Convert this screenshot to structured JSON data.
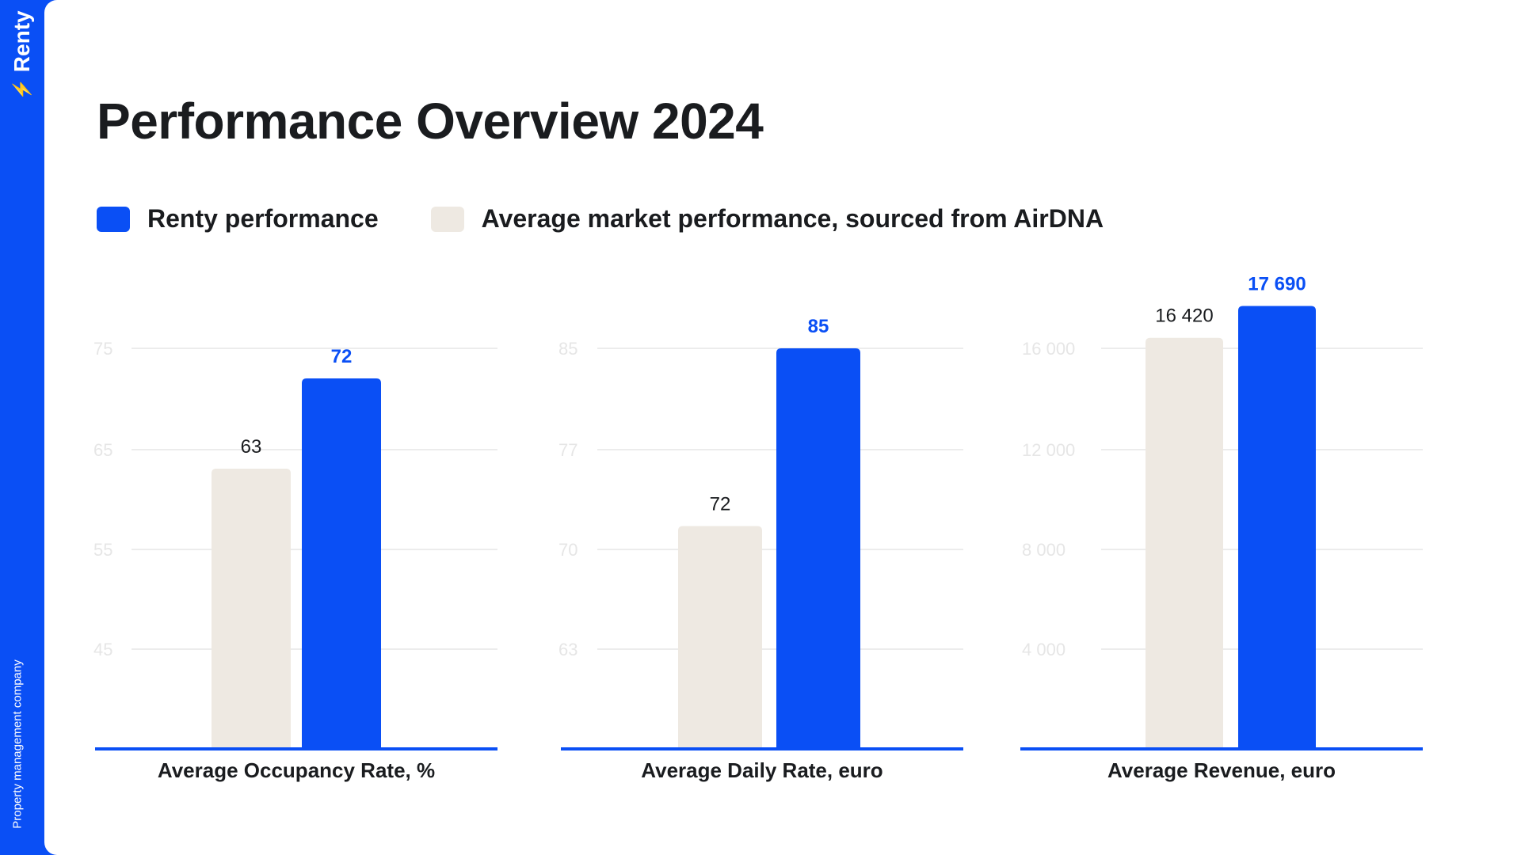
{
  "brand": {
    "name": "Renty",
    "tagline": "Property management company"
  },
  "title": "Performance Overview 2024",
  "legend": [
    {
      "label": "Renty performance",
      "color": "#0a4ff5"
    },
    {
      "label": "Average market performance, sourced from AirDNA",
      "color": "#eee9e2"
    }
  ],
  "chart_data": [
    {
      "type": "bar",
      "xlabel": "Average Occupancy Rate, %",
      "y_ticks": [
        "75",
        "65",
        "55",
        "45"
      ],
      "y_tick_values": [
        75,
        65,
        55,
        45
      ],
      "series": [
        {
          "value": 63,
          "label": "63",
          "color": "#eee9e2"
        },
        {
          "value": 72,
          "label": "72",
          "color": "#0a4ff5"
        }
      ]
    },
    {
      "type": "bar",
      "xlabel": "Average Daily Rate, euro",
      "y_ticks": [
        "85",
        "77",
        "70",
        "63"
      ],
      "y_tick_values": [
        85,
        77,
        70,
        63
      ],
      "series": [
        {
          "value": 72,
          "label": "72",
          "color": "#eee9e2"
        },
        {
          "value": 85,
          "label": "85",
          "color": "#0a4ff5"
        }
      ]
    },
    {
      "type": "bar",
      "xlabel": "Average Revenue, euro",
      "y_ticks": [
        "16 000",
        "12 000",
        "8 000",
        "4 000"
      ],
      "y_tick_values": [
        16000,
        12000,
        8000,
        4000
      ],
      "series": [
        {
          "value": 16420,
          "label": "16 420",
          "color": "#eee9e2"
        },
        {
          "value": 17690,
          "label": "17 690",
          "color": "#0a4ff5"
        }
      ]
    }
  ]
}
